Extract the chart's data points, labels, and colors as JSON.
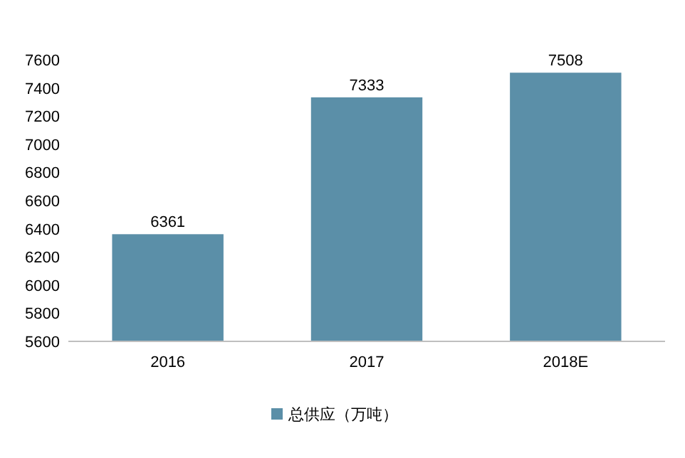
{
  "chart_data": {
    "type": "bar",
    "categories": [
      "2016",
      "2017",
      "2018E"
    ],
    "series": [
      {
        "name": "总供应（万吨）",
        "color": "#5b8fa8",
        "values": [
          6361,
          7333,
          7508
        ]
      }
    ],
    "ylim": [
      5600,
      7600
    ],
    "yticks": [
      5600,
      5800,
      6000,
      6200,
      6400,
      6600,
      6800,
      7000,
      7200,
      7400,
      7600
    ],
    "data_labels": true,
    "legend": "bottom",
    "grid": false
  }
}
